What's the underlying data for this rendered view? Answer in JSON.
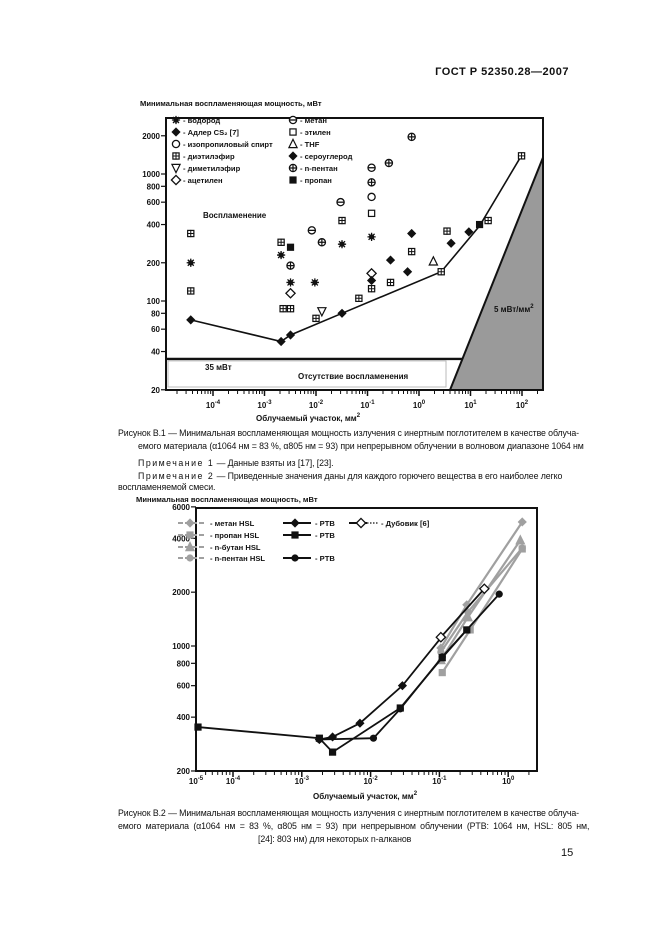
{
  "header": {
    "standard": "ГОСТ Р 52350.28—2007"
  },
  "figure1": {
    "ylabel": "Минимальная воспламеняющая мощность, мВт",
    "xlabel": "Облучаемый участок, мм",
    "xlabel_sup": "2",
    "annotations": {
      "ignition": "Воспламенение",
      "limit": "35 мВт",
      "no_ignition": "Отсутствие воспламенения",
      "density": "5 мВт/мм",
      "density_sup": "2"
    },
    "caption_line1": "Рисунок В.1 — Минимальная воспламеняющая мощность излучения с инертным поглотителем в качестве облуча-",
    "caption_line2": "емого материала (α1064 нм = 83 %, α805 нм = 93) при непрерывном облучении в волновом диапазоне 1064 нм"
  },
  "notes": {
    "note1_label": "Примечание 1",
    "note1_text": " — Данные взяты из [17], [23].",
    "note2_label": "Примечание 2",
    "note2_text": " — Приведенные значения даны для каждого горючего вещества в его наиболее легко",
    "note2_text2": "воспламеняемой смеси."
  },
  "figure2": {
    "caption_line1": "Рисунок В.2 — Минимальная воспламеняющая мощность излучения с инертным поглотителем в качестве облуча-",
    "caption_line2": "емого материала (α1064 нм = 83 %, α805 нм = 93) при непрерывном облучении (PTB: 1064 нм, HSL: 805 нм,",
    "caption_line3": "[24]: 803 нм) для некоторых n-алканов"
  },
  "page_number": "15",
  "chart_data": [
    {
      "type": "scatter",
      "ylabel": "Минимальная воспламеняющая мощность, мВт",
      "xlabel": "Облучаемый участок, мм²",
      "xscale": "log",
      "yscale": "log",
      "xlim": [
        1.2e-05,
        270
      ],
      "ylim": [
        20,
        2760
      ],
      "xticks": [
        {
          "v": 0.0001,
          "label": "10-4"
        },
        {
          "v": 0.001,
          "label": "10-3"
        },
        {
          "v": 0.01,
          "label": "10-2"
        },
        {
          "v": 0.1,
          "label": "10-1"
        },
        {
          "v": 1,
          "label": "100"
        },
        {
          "v": 10,
          "label": "101"
        },
        {
          "v": 100,
          "label": "102"
        }
      ],
      "yticks": [
        2000,
        1000,
        800,
        600,
        400,
        200,
        100,
        80,
        60,
        40,
        20
      ],
      "limit_mW": 35,
      "threshold_mW_per_mm2": 5,
      "legend_placement": "top-left",
      "series": [
        {
          "name": "- водород",
          "marker": "asterisk",
          "col": 0,
          "points": [
            [
              3.7e-05,
              200
            ],
            [
              0.0021,
              230
            ],
            [
              0.0032,
              140
            ],
            [
              0.0095,
              140
            ],
            [
              0.032,
              280
            ],
            [
              0.12,
              320
            ]
          ]
        },
        {
          "name": "- Адлер CS₂ [7]",
          "marker": "diamond-filled",
          "col": 0,
          "points": [
            [
              3.7e-05,
              71
            ],
            [
              0.0021,
              48
            ],
            [
              0.0032,
              54
            ]
          ]
        },
        {
          "name": "- изопропиловый спирт",
          "marker": "circle-open",
          "col": 0,
          "points": [
            [
              0.12,
              660
            ]
          ]
        },
        {
          "name": "- диэтилэфир",
          "marker": "square-plus",
          "col": 0,
          "points": [
            [
              3.7e-05,
              340
            ],
            [
              3.7e-05,
              120
            ],
            [
              0.0021,
              290
            ],
            [
              0.0023,
              87
            ],
            [
              0.0032,
              87
            ],
            [
              0.01,
              73
            ],
            [
              0.032,
              430
            ],
            [
              0.068,
              105
            ],
            [
              0.12,
              125
            ],
            [
              0.28,
              140
            ],
            [
              0.72,
              245
            ],
            [
              2.7,
              170
            ],
            [
              3.5,
              355
            ],
            [
              22,
              430
            ],
            [
              98,
              1390
            ]
          ]
        },
        {
          "name": "- диметилэфир",
          "marker": "triangle-down",
          "col": 0,
          "points": [
            [
              0.013,
              83
            ]
          ]
        },
        {
          "name": "- ацетилен",
          "marker": "diamond-open",
          "col": 0,
          "points": [
            [
              0.0032,
              115
            ],
            [
              0.12,
              165
            ]
          ]
        },
        {
          "name": "- метан",
          "marker": "circle-minus",
          "col": 1,
          "points": [
            [
              0.0083,
              360
            ],
            [
              0.03,
              600
            ],
            [
              0.12,
              1120
            ]
          ]
        },
        {
          "name": "- этилен",
          "marker": "square-open",
          "col": 1,
          "points": [
            [
              0.12,
              490
            ]
          ]
        },
        {
          "name": "- THF",
          "marker": "triangle-up",
          "col": 1,
          "points": [
            [
              1.9,
              205
            ]
          ]
        },
        {
          "name": "- сероуглерод",
          "marker": "diamond-filled",
          "col": 1,
          "points": [
            [
              0.72,
              340
            ],
            [
              0.28,
              210
            ],
            [
              0.6,
              170
            ],
            [
              4.2,
              285
            ],
            [
              9.3,
              350
            ],
            [
              0.12,
              145
            ],
            [
              0.032,
              80
            ]
          ]
        },
        {
          "name": "- n-пентан",
          "marker": "circle-plus",
          "col": 1,
          "points": [
            [
              0.013,
              290
            ],
            [
              0.0032,
              190
            ],
            [
              0.26,
              1220
            ],
            [
              0.72,
              1960
            ],
            [
              0.12,
              860
            ]
          ]
        },
        {
          "name": "- пропан",
          "marker": "square-filled",
          "col": 1,
          "points": [
            [
              0.0032,
              265
            ],
            [
              15,
              400
            ]
          ]
        }
      ],
      "boundary_line": [
        [
          3.7e-05,
          71
        ],
        [
          0.0021,
          48
        ],
        [
          0.0032,
          54
        ],
        [
          0.032,
          80
        ],
        [
          2.7,
          170
        ],
        [
          15,
          390
        ],
        [
          98,
          1400
        ]
      ]
    },
    {
      "type": "line",
      "ylabel": "Минимальная воспламеняющая мощность, мВт",
      "xlabel": "Облучаемый участок, мм²",
      "xscale": "log",
      "yscale": "log",
      "xlim": [
        2.9e-05,
        2.6
      ],
      "ylim": [
        200,
        6000
      ],
      "xticks": [
        {
          "v": null,
          "label": "10-5"
        },
        {
          "v": 0.0001,
          "label": "10-4"
        },
        {
          "v": 0.001,
          "label": "10-3"
        },
        {
          "v": 0.01,
          "label": "10-2"
        },
        {
          "v": 0.1,
          "label": "10-1"
        },
        {
          "v": 1,
          "label": "100"
        }
      ],
      "yticks": [
        6000,
        4000,
        2000,
        1000,
        800,
        600,
        400,
        200
      ],
      "legend_placement": "top-left",
      "series": [
        {
          "name": "- метан HSL",
          "color": "#a0a0a0",
          "marker": "diamond-filled",
          "dash": true,
          "col": 0,
          "row": 0,
          "points": [
            [
              0.105,
              975
            ],
            [
              0.25,
              1700
            ],
            [
              1.6,
              4940
            ]
          ]
        },
        {
          "name": "- пропан HSL",
          "color": "#a0a0a0",
          "marker": "square-filled",
          "dash": true,
          "col": 0,
          "row": 1,
          "points": [
            [
              0.11,
              710
            ],
            [
              0.28,
              1230
            ],
            [
              1.6,
              3490
            ]
          ]
        },
        {
          "name": "- n-бутан HSL",
          "color": "#a0a0a0",
          "marker": "triangle-up",
          "dash": true,
          "col": 0,
          "row": 2,
          "points": [
            [
              0.105,
              835
            ],
            [
              0.26,
              1450
            ],
            [
              1.5,
              3900
            ]
          ]
        },
        {
          "name": "- n-пентан HSL",
          "color": "#a0a0a0",
          "marker": "circle-filled",
          "dash": true,
          "col": 0,
          "row": 3,
          "points": [
            [
              0.105,
              925
            ],
            [
              0.26,
              1550
            ],
            [
              1.6,
              3530
            ]
          ]
        },
        {
          "name": "- PTB",
          "color": "#111111",
          "marker": "diamond-filled",
          "dash": false,
          "col": 1,
          "row": 0,
          "points": [
            [
              0.0018,
              300
            ],
            [
              0.0028,
              310
            ],
            [
              0.007,
              370
            ],
            [
              0.029,
              600
            ],
            [
              0.105,
              1110
            ]
          ]
        },
        {
          "name": "- PTB",
          "color": "#111111",
          "marker": "square-filled",
          "dash": false,
          "col": 1,
          "row": 1,
          "points": [
            [
              3.1e-05,
              352
            ],
            [
              0.0018,
              305
            ],
            [
              0.0028,
              255
            ],
            [
              0.027,
              450
            ],
            [
              0.11,
              860
            ],
            [
              0.25,
              1230
            ]
          ]
        },
        {
          "name": "- PTB",
          "color": "#111111",
          "marker": "circle-filled",
          "dash": false,
          "col": 1,
          "row": 3,
          "points": [
            [
              0.0018,
              300
            ],
            [
              0.011,
              305
            ],
            [
              0.027,
              445
            ],
            [
              0.11,
              870
            ],
            [
              0.74,
              1950
            ]
          ]
        },
        {
          "name": "- Дубовик [6]",
          "color": "#111111",
          "marker": "diamond-open",
          "dash": false,
          "dotted_tail": true,
          "col": 2,
          "row": 0,
          "points": [
            [
              0.105,
              1120
            ],
            [
              0.45,
              2090
            ]
          ]
        }
      ]
    }
  ]
}
